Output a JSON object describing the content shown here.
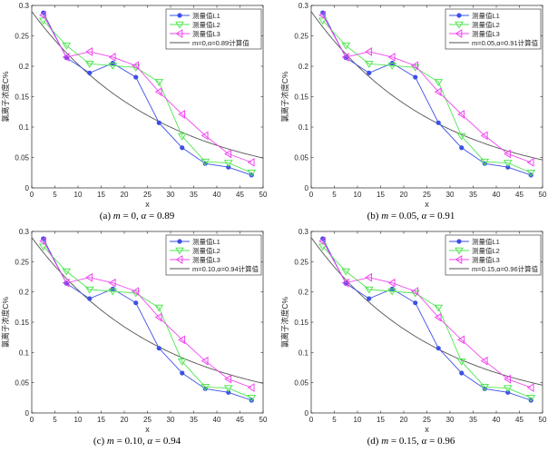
{
  "chart_data": [
    {
      "type": "line",
      "id": "a",
      "caption_prefix": "(a) ",
      "m_label": "m",
      "m_value": "0",
      "alpha_label": "α",
      "alpha_value": "0.89",
      "xlabel": "x",
      "ylabel": "氯离子浓度C%",
      "xlim": [
        0,
        50
      ],
      "ylim": [
        0,
        0.3
      ],
      "xticks": [
        0,
        5,
        10,
        15,
        20,
        25,
        30,
        35,
        40,
        45,
        50
      ],
      "yticks": [
        0,
        0.05,
        0.1,
        0.15,
        0.2,
        0.25,
        0.3
      ],
      "ytick_labels": [
        "0",
        "0.05",
        "0.1",
        "0.15",
        "0.2",
        "0.25",
        "0.3"
      ],
      "legend_position": "top-right",
      "x": [
        2.5,
        7.5,
        12.5,
        17.5,
        22.5,
        27.5,
        32.5,
        37.5,
        42.5,
        47.5
      ],
      "series": [
        {
          "name": "测量值L1",
          "color": "#3c50e6",
          "marker": "dot",
          "values": [
            0.288,
            0.214,
            0.189,
            0.205,
            0.182,
            0.107,
            0.066,
            0.04,
            0.034,
            0.021
          ]
        },
        {
          "name": "测量值L2",
          "color": "#52e652",
          "marker": "triangle-down",
          "values": [
            0.275,
            0.234,
            0.204,
            0.201,
            0.198,
            0.174,
            0.085,
            0.043,
            0.041,
            0.025
          ]
        },
        {
          "name": "测量值L3",
          "color": "#f046f0",
          "marker": "triangle-left",
          "values": [
            0.284,
            0.215,
            0.224,
            0.215,
            0.201,
            0.158,
            0.121,
            0.086,
            0.056,
            0.042
          ]
        }
      ],
      "computed": {
        "name": "m=0,α=0.89计算值",
        "color": "#555555",
        "start": 0.29,
        "end": 0.049
      }
    },
    {
      "type": "line",
      "id": "b",
      "caption_prefix": "(b) ",
      "m_label": "m",
      "m_value": "0.05",
      "alpha_label": "α",
      "alpha_value": "0.91",
      "xlabel": "x",
      "ylabel": "氯离子浓度C%",
      "xlim": [
        0,
        50
      ],
      "ylim": [
        0,
        0.3
      ],
      "xticks": [
        0,
        5,
        10,
        15,
        20,
        25,
        30,
        35,
        40,
        45,
        50
      ],
      "yticks": [
        0,
        0.05,
        0.1,
        0.15,
        0.2,
        0.25,
        0.3
      ],
      "ytick_labels": [
        "0",
        "0.05",
        "0.1",
        "0.15",
        "0.2",
        "0.25",
        "0.3"
      ],
      "legend_position": "top-right",
      "x": [
        2.5,
        7.5,
        12.5,
        17.5,
        22.5,
        27.5,
        32.5,
        37.5,
        42.5,
        47.5
      ],
      "series": [
        {
          "name": "测量值L1",
          "color": "#3c50e6",
          "marker": "dot",
          "values": [
            0.288,
            0.214,
            0.189,
            0.205,
            0.182,
            0.107,
            0.066,
            0.04,
            0.034,
            0.021
          ]
        },
        {
          "name": "测量值L2",
          "color": "#52e652",
          "marker": "triangle-down",
          "values": [
            0.275,
            0.234,
            0.204,
            0.201,
            0.198,
            0.174,
            0.085,
            0.043,
            0.041,
            0.025
          ]
        },
        {
          "name": "测量值L3",
          "color": "#f046f0",
          "marker": "triangle-left",
          "values": [
            0.284,
            0.215,
            0.224,
            0.215,
            0.201,
            0.158,
            0.121,
            0.086,
            0.056,
            0.042
          ]
        }
      ],
      "computed": {
        "name": "m=0.05,α=0.91计算值",
        "color": "#555555",
        "start": 0.29,
        "end": 0.046
      }
    },
    {
      "type": "line",
      "id": "c",
      "caption_prefix": "(c) ",
      "m_label": "m",
      "m_value": "0.10",
      "alpha_label": "α",
      "alpha_value": "0.94",
      "xlabel": "x",
      "ylabel": "氯离子浓度C%",
      "xlim": [
        0,
        50
      ],
      "ylim": [
        0,
        0.3
      ],
      "xticks": [
        0,
        5,
        10,
        15,
        20,
        25,
        30,
        35,
        40,
        45,
        50
      ],
      "yticks": [
        0,
        0.05,
        0.1,
        0.15,
        0.2,
        0.25,
        0.3
      ],
      "ytick_labels": [
        "0",
        "0.05",
        "0.1",
        "0.15",
        "0.2",
        "0.25",
        "0.3"
      ],
      "legend_position": "top-right",
      "x": [
        2.5,
        7.5,
        12.5,
        17.5,
        22.5,
        27.5,
        32.5,
        37.5,
        42.5,
        47.5
      ],
      "series": [
        {
          "name": "测量值L1",
          "color": "#3c50e6",
          "marker": "dot",
          "values": [
            0.288,
            0.214,
            0.189,
            0.205,
            0.182,
            0.107,
            0.066,
            0.04,
            0.034,
            0.021
          ]
        },
        {
          "name": "测量值L2",
          "color": "#52e652",
          "marker": "triangle-down",
          "values": [
            0.275,
            0.234,
            0.204,
            0.201,
            0.198,
            0.174,
            0.085,
            0.043,
            0.041,
            0.025
          ]
        },
        {
          "name": "测量值L3",
          "color": "#f046f0",
          "marker": "triangle-left",
          "values": [
            0.284,
            0.215,
            0.224,
            0.215,
            0.201,
            0.158,
            0.121,
            0.086,
            0.056,
            0.042
          ]
        }
      ],
      "computed": {
        "name": "m=0.10,α=0.94计算值",
        "color": "#555555",
        "start": 0.29,
        "end": 0.049
      }
    },
    {
      "type": "line",
      "id": "d",
      "caption_prefix": "(d) ",
      "m_label": "m",
      "m_value": "0.15",
      "alpha_label": "α",
      "alpha_value": "0.96",
      "xlabel": "x",
      "ylabel": "氯离子浓度C%",
      "xlim": [
        0,
        50
      ],
      "ylim": [
        0,
        0.3
      ],
      "xticks": [
        0,
        5,
        10,
        15,
        20,
        25,
        30,
        35,
        40,
        45,
        50
      ],
      "yticks": [
        0,
        0.05,
        0.1,
        0.15,
        0.2,
        0.25,
        0.3
      ],
      "ytick_labels": [
        "0",
        "0.05",
        "0.1",
        "0.15",
        "0.2",
        "0.25",
        "0.3"
      ],
      "legend_position": "top-right",
      "x": [
        2.5,
        7.5,
        12.5,
        17.5,
        22.5,
        27.5,
        32.5,
        37.5,
        42.5,
        47.5
      ],
      "series": [
        {
          "name": "测量值L1",
          "color": "#3c50e6",
          "marker": "dot",
          "values": [
            0.288,
            0.214,
            0.189,
            0.205,
            0.182,
            0.107,
            0.066,
            0.04,
            0.034,
            0.021
          ]
        },
        {
          "name": "测量值L2",
          "color": "#52e652",
          "marker": "triangle-down",
          "values": [
            0.275,
            0.234,
            0.204,
            0.201,
            0.198,
            0.174,
            0.085,
            0.043,
            0.041,
            0.025
          ]
        },
        {
          "name": "测量值L3",
          "color": "#f046f0",
          "marker": "triangle-left",
          "values": [
            0.284,
            0.215,
            0.224,
            0.215,
            0.201,
            0.158,
            0.121,
            0.086,
            0.056,
            0.042
          ]
        }
      ],
      "computed": {
        "name": "m=0.15,α=0.96计算值",
        "color": "#555555",
        "start": 0.29,
        "end": 0.046
      }
    }
  ]
}
